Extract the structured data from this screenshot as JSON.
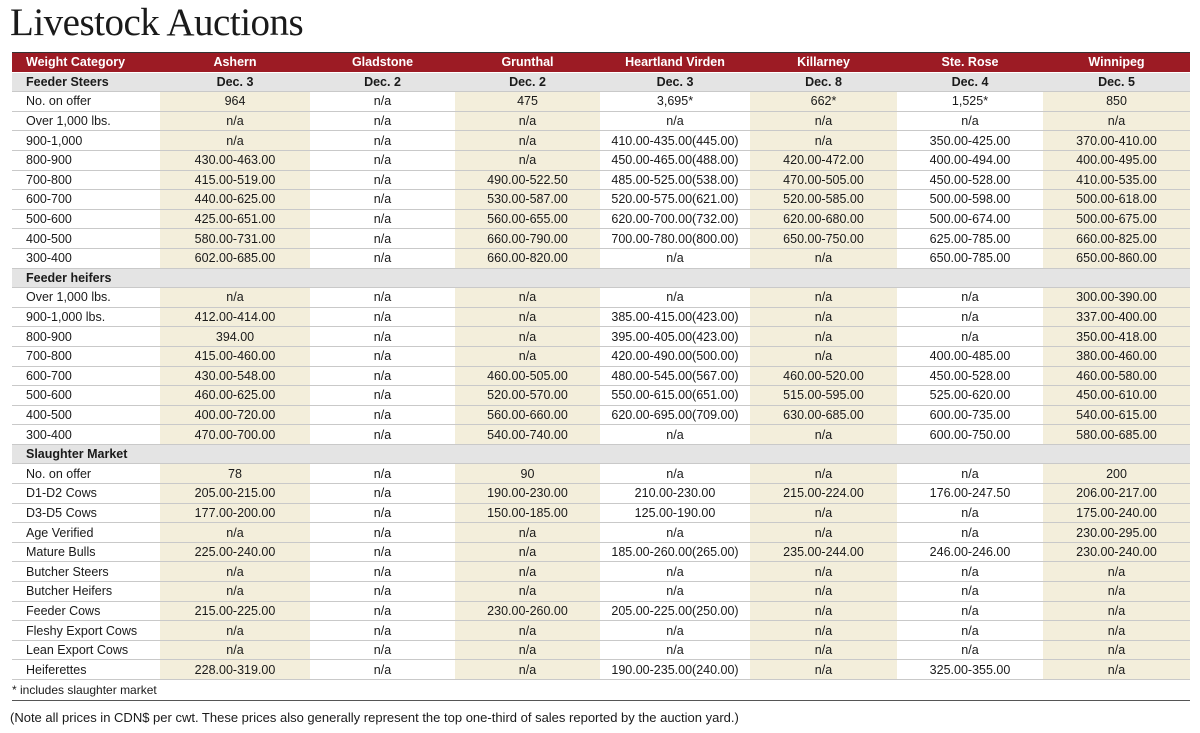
{
  "title": "Livestock Auctions",
  "table": {
    "columns": [
      "Weight Category",
      "Ashern",
      "Gladstone",
      "Grunthal",
      "Heartland Virden",
      "Killarney",
      "Ste. Rose",
      "Winnipeg"
    ],
    "sections": [
      {
        "name": "Feeder Steers",
        "dates": [
          "Dec. 3",
          "Dec. 2",
          "Dec. 2",
          "Dec. 3",
          "Dec. 8",
          "Dec. 4",
          "Dec. 5"
        ],
        "rows": [
          {
            "label": "No. on offer",
            "values": [
              "964",
              "n/a",
              "475",
              "3,695*",
              "662*",
              "1,525*",
              "850"
            ]
          },
          {
            "label": "Over 1,000 lbs.",
            "values": [
              "n/a",
              "n/a",
              "n/a",
              "n/a",
              "n/a",
              "n/a",
              "n/a"
            ]
          },
          {
            "label": "900-1,000",
            "values": [
              "n/a",
              "n/a",
              "n/a",
              "410.00-435.00(445.00)",
              "n/a",
              "350.00-425.00",
              "370.00-410.00"
            ]
          },
          {
            "label": "800-900",
            "values": [
              "430.00-463.00",
              "n/a",
              "n/a",
              "450.00-465.00(488.00)",
              "420.00-472.00",
              "400.00-494.00",
              "400.00-495.00"
            ]
          },
          {
            "label": "700-800",
            "values": [
              "415.00-519.00",
              "n/a",
              "490.00-522.50",
              "485.00-525.00(538.00)",
              "470.00-505.00",
              "450.00-528.00",
              "410.00-535.00"
            ]
          },
          {
            "label": "600-700",
            "values": [
              "440.00-625.00",
              "n/a",
              "530.00-587.00",
              "520.00-575.00(621.00)",
              "520.00-585.00",
              "500.00-598.00",
              "500.00-618.00"
            ]
          },
          {
            "label": "500-600",
            "values": [
              "425.00-651.00",
              "n/a",
              "560.00-655.00",
              "620.00-700.00(732.00)",
              "620.00-680.00",
              "500.00-674.00",
              "500.00-675.00"
            ]
          },
          {
            "label": "400-500",
            "values": [
              "580.00-731.00",
              "n/a",
              "660.00-790.00",
              "700.00-780.00(800.00)",
              "650.00-750.00",
              "625.00-785.00",
              "660.00-825.00"
            ]
          },
          {
            "label": "300-400",
            "values": [
              "602.00-685.00",
              "n/a",
              "660.00-820.00",
              "n/a",
              "n/a",
              "650.00-785.00",
              "650.00-860.00"
            ]
          }
        ]
      },
      {
        "name": "Feeder heifers",
        "rows": [
          {
            "label": "Over 1,000 lbs.",
            "values": [
              "n/a",
              "n/a",
              "n/a",
              "n/a",
              "n/a",
              "n/a",
              "300.00-390.00"
            ]
          },
          {
            "label": "900-1,000 lbs.",
            "values": [
              "412.00-414.00",
              "n/a",
              "n/a",
              "385.00-415.00(423.00)",
              "n/a",
              "n/a",
              "337.00-400.00"
            ]
          },
          {
            "label": "800-900",
            "values": [
              "394.00",
              "n/a",
              "n/a",
              "395.00-405.00(423.00)",
              "n/a",
              "n/a",
              "350.00-418.00"
            ]
          },
          {
            "label": "700-800",
            "values": [
              "415.00-460.00",
              "n/a",
              "n/a",
              "420.00-490.00(500.00)",
              "n/a",
              "400.00-485.00",
              "380.00-460.00"
            ]
          },
          {
            "label": "600-700",
            "values": [
              "430.00-548.00",
              "n/a",
              "460.00-505.00",
              "480.00-545.00(567.00)",
              "460.00-520.00",
              "450.00-528.00",
              "460.00-580.00"
            ]
          },
          {
            "label": "500-600",
            "values": [
              "460.00-625.00",
              "n/a",
              "520.00-570.00",
              "550.00-615.00(651.00)",
              "515.00-595.00",
              "525.00-620.00",
              "450.00-610.00"
            ]
          },
          {
            "label": "400-500",
            "values": [
              "400.00-720.00",
              "n/a",
              "560.00-660.00",
              "620.00-695.00(709.00)",
              "630.00-685.00",
              "600.00-735.00",
              "540.00-615.00"
            ]
          },
          {
            "label": "300-400",
            "values": [
              "470.00-700.00",
              "n/a",
              "540.00-740.00",
              "n/a",
              "n/a",
              "600.00-750.00",
              "580.00-685.00"
            ]
          }
        ]
      },
      {
        "name": "Slaughter Market",
        "rows": [
          {
            "label": "No. on offer",
            "values": [
              "78",
              "n/a",
              "90",
              "n/a",
              "n/a",
              "n/a",
              "200"
            ]
          },
          {
            "label": "D1-D2 Cows",
            "values": [
              "205.00-215.00",
              "n/a",
              "190.00-230.00",
              "210.00-230.00",
              "215.00-224.00",
              "176.00-247.50",
              "206.00-217.00"
            ]
          },
          {
            "label": "D3-D5 Cows",
            "values": [
              "177.00-200.00",
              "n/a",
              "150.00-185.00",
              "125.00-190.00",
              "n/a",
              "n/a",
              "175.00-240.00"
            ]
          },
          {
            "label": "Age Verified",
            "values": [
              "n/a",
              "n/a",
              "n/a",
              "n/a",
              "n/a",
              "n/a",
              "230.00-295.00"
            ]
          },
          {
            "label": "Mature Bulls",
            "values": [
              "225.00-240.00",
              "n/a",
              "n/a",
              "185.00-260.00(265.00)",
              "235.00-244.00",
              "246.00-246.00",
              "230.00-240.00"
            ]
          },
          {
            "label": "Butcher Steers",
            "values": [
              "n/a",
              "n/a",
              "n/a",
              "n/a",
              "n/a",
              "n/a",
              "n/a"
            ]
          },
          {
            "label": "Butcher Heifers",
            "values": [
              "n/a",
              "n/a",
              "n/a",
              "n/a",
              "n/a",
              "n/a",
              "n/a"
            ]
          },
          {
            "label": "Feeder Cows",
            "values": [
              "215.00-225.00",
              "n/a",
              "230.00-260.00",
              "205.00-225.00(250.00)",
              "n/a",
              "n/a",
              "n/a"
            ]
          },
          {
            "label": "Fleshy Export Cows",
            "values": [
              "n/a",
              "n/a",
              "n/a",
              "n/a",
              "n/a",
              "n/a",
              "n/a"
            ]
          },
          {
            "label": "Lean Export Cows",
            "values": [
              "n/a",
              "n/a",
              "n/a",
              "n/a",
              "n/a",
              "n/a",
              "n/a"
            ]
          },
          {
            "label": "Heiferettes",
            "values": [
              "228.00-319.00",
              "n/a",
              "n/a",
              "190.00-235.00(240.00)",
              "n/a",
              "325.00-355.00",
              "n/a"
            ]
          }
        ]
      }
    ]
  },
  "footnote": "* includes slaughter market",
  "note": "(Note all prices in CDN$ per cwt. These prices also generally represent the top one-third of sales reported by the auction yard.)"
}
